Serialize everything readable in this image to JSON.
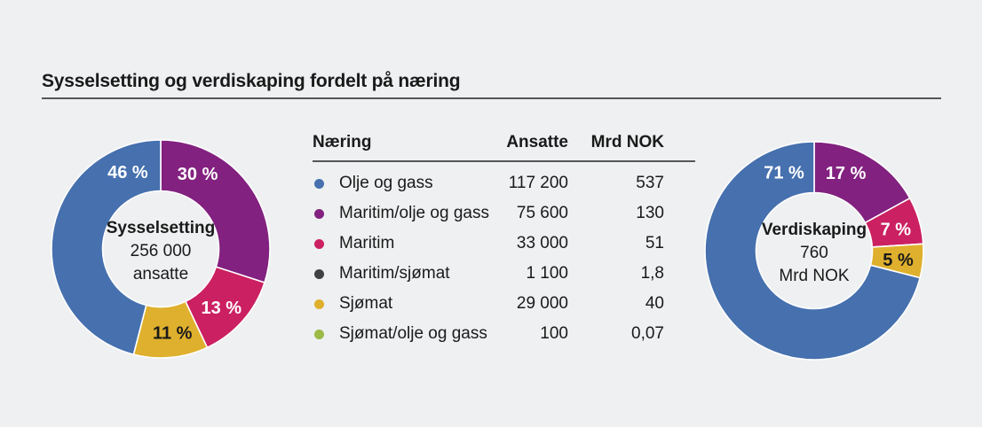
{
  "page": {
    "title": "Sysselsetting og verdiskaping fordelt på næring",
    "background": "#eef0f1"
  },
  "colors": {
    "blue": "#4670ae",
    "purple": "#82217f",
    "pink": "#cb2061",
    "dark": "#414141",
    "yellow": "#dfb02d",
    "green": "#9cba45",
    "text": "#1a1a1a",
    "rule": "#55565a",
    "label_light": "#ffffff",
    "label_dark": "#1a1a1a"
  },
  "table": {
    "headers": [
      "Næring",
      "Ansatte",
      "Mrd NOK"
    ],
    "rows": [
      {
        "color": "blue",
        "naering": "Olje og gass",
        "ansatte": "117 200",
        "mrd_nok": "537"
      },
      {
        "color": "purple",
        "naering": "Maritim/olje og gass",
        "ansatte": "75 600",
        "mrd_nok": "130"
      },
      {
        "color": "pink",
        "naering": "Maritim",
        "ansatte": "33 000",
        "mrd_nok": "51"
      },
      {
        "color": "dark",
        "naering": "Maritim/sjømat",
        "ansatte": "1 100",
        "mrd_nok": "1,8"
      },
      {
        "color": "yellow",
        "naering": "Sjømat",
        "ansatte": "29 000",
        "mrd_nok": "40"
      },
      {
        "color": "green",
        "naering": "Sjømat/olje og gass",
        "ansatte": "100",
        "mrd_nok": "0,07"
      }
    ]
  },
  "chart_data": [
    {
      "type": "pie",
      "donut": true,
      "name": "sysselsetting-donut",
      "center": {
        "line1": "Sysselsetting",
        "line2": "256 000",
        "line3": "ansatte"
      },
      "start_angle_deg": 0,
      "direction": "clockwise",
      "legend": "none",
      "slices": [
        {
          "category": "Maritim/olje og gass",
          "label": "30 %",
          "value": 30,
          "color": "purple",
          "label_color": "light",
          "label_angle": 26
        },
        {
          "category": "Maritim",
          "label": "13 %",
          "value": 13,
          "color": "pink",
          "label_color": "light",
          "label_angle": 134
        },
        {
          "category": "Sjømat",
          "label": "11 %",
          "value": 11,
          "color": "yellow",
          "label_color": "dark",
          "label_angle": 172
        },
        {
          "category": "Olje og gass",
          "label": "46 %",
          "value": 46,
          "color": "blue",
          "label_color": "light",
          "label_angle": 337
        }
      ]
    },
    {
      "type": "pie",
      "donut": true,
      "name": "verdiskaping-donut",
      "center": {
        "line1": "Verdiskaping",
        "line2": "760",
        "line3": "Mrd NOK"
      },
      "start_angle_deg": 0,
      "direction": "clockwise",
      "legend": "none",
      "slices": [
        {
          "category": "Maritim/olje og gass",
          "label": "17 %",
          "value": 17,
          "color": "purple",
          "label_color": "light",
          "label_angle": 22
        },
        {
          "category": "Maritim",
          "label": "7 %",
          "value": 7,
          "color": "pink",
          "label_color": "light",
          "label_angle": 75
        },
        {
          "category": "Sjømat",
          "label": "5 %",
          "value": 5,
          "color": "yellow",
          "label_color": "dark",
          "label_angle": 96
        },
        {
          "category": "Olje og gass",
          "label": "71 %",
          "value": 71,
          "color": "blue",
          "label_color": "light",
          "label_angle": 339
        }
      ]
    }
  ]
}
